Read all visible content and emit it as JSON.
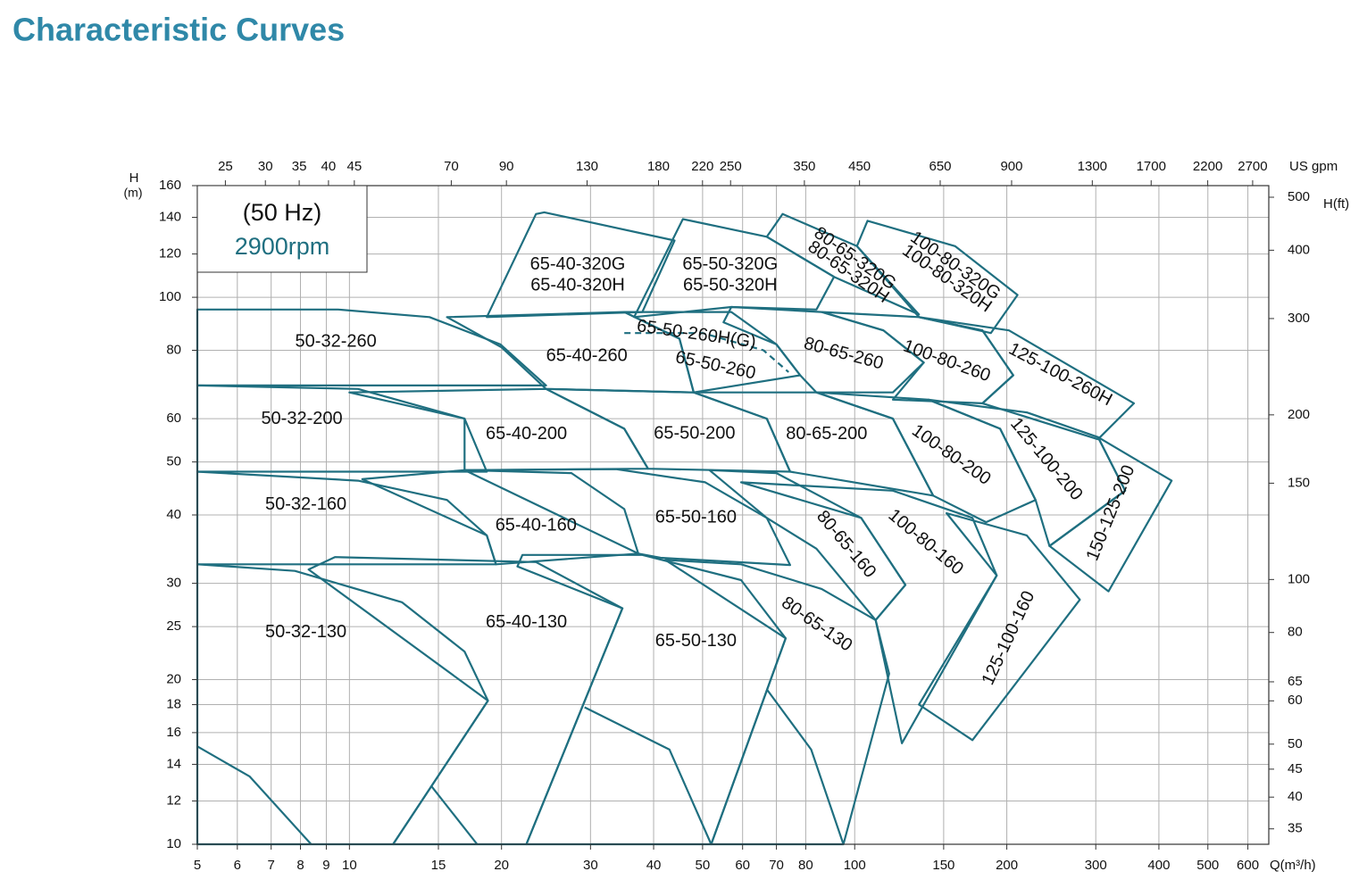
{
  "chart_data": {
    "type": "region",
    "title": "Characteristic Curves",
    "frequency": "(50 Hz)",
    "speed": "2900rpm",
    "y_label": "H",
    "y_unit": "(m)",
    "x_label": "Q(m³/h)",
    "x2_label": "US gpm",
    "y2_label": "H(ft)",
    "log_x": true,
    "log_y": true,
    "grid": true,
    "color": "#1f6f80",
    "title_color": "#2f88a8",
    "xlim": [
      5,
      660
    ],
    "ylim": [
      10,
      160
    ],
    "x2lim": [
      22.0,
      2906
    ],
    "y2lim": [
      32.8,
      525
    ],
    "xticks": [
      5,
      6,
      7,
      8,
      9,
      10,
      15,
      20,
      30,
      40,
      50,
      60,
      70,
      80,
      100,
      150,
      200,
      300,
      400,
      500,
      600
    ],
    "yticks": [
      10,
      12,
      14,
      16,
      18,
      20,
      25,
      30,
      40,
      50,
      60,
      80,
      100,
      120,
      140,
      160
    ],
    "x2ticks": [
      25,
      30,
      35,
      40,
      45,
      70,
      90,
      130,
      180,
      220,
      250,
      350,
      450,
      650,
      900,
      1300,
      1700,
      2200,
      2700
    ],
    "y2ticks": [
      35,
      40,
      45,
      50,
      60,
      65,
      80,
      100,
      150,
      200,
      300,
      400,
      500
    ],
    "regions": [
      {
        "points": [
          [
            5,
            95
          ],
          [
            9.5,
            95
          ],
          [
            14.4,
            92
          ],
          [
            19.9,
            82
          ],
          [
            24.5,
            69
          ],
          [
            5,
            69
          ]
        ]
      },
      {
        "points": [
          [
            15.6,
            92
          ],
          [
            35,
            94
          ],
          [
            45,
            84
          ],
          [
            48,
            67
          ],
          [
            24.5,
            68
          ],
          [
            20,
            81
          ]
        ]
      },
      {
        "points": [
          [
            35,
            94
          ],
          [
            57,
            94
          ],
          [
            70,
            82
          ],
          [
            78,
            72
          ],
          [
            48,
            67
          ],
          [
            45,
            84
          ]
        ]
      },
      {
        "points": [
          [
            35,
            86
          ],
          [
            50,
            86
          ],
          [
            66,
            80
          ],
          [
            74,
            73
          ]
        ],
        "closed": false,
        "dashed": true
      },
      {
        "points": [
          [
            57,
            96
          ],
          [
            86,
            94
          ],
          [
            114,
            87
          ],
          [
            137,
            76
          ],
          [
            119,
            67
          ],
          [
            84,
            67
          ],
          [
            78,
            72
          ],
          [
            70,
            82
          ],
          [
            55,
            90
          ]
        ]
      },
      {
        "points": [
          [
            86,
            94
          ],
          [
            134,
            92
          ],
          [
            179,
            87
          ],
          [
            206,
            72
          ],
          [
            179,
            64
          ],
          [
            119,
            65
          ],
          [
            137,
            76
          ],
          [
            114,
            87
          ]
        ]
      },
      {
        "points": [
          [
            134,
            92
          ],
          [
            202,
            87
          ],
          [
            357,
            64
          ],
          [
            303,
            55
          ],
          [
            179,
            64
          ],
          [
            206,
            72
          ],
          [
            179,
            87
          ]
        ]
      },
      {
        "points": [
          [
            18.7,
            92
          ],
          [
            23.4,
            142
          ],
          [
            24.3,
            143
          ],
          [
            44,
            127
          ],
          [
            38,
            94
          ]
        ]
      },
      {
        "points": [
          [
            36.6,
            92
          ],
          [
            45.7,
            139
          ],
          [
            67,
            129
          ],
          [
            91,
            109
          ],
          [
            84,
            95
          ],
          [
            57,
            96
          ]
        ]
      },
      {
        "points": [
          [
            67,
            129
          ],
          [
            72,
            142
          ],
          [
            101,
            124
          ],
          [
            134,
            93
          ],
          [
            91,
            109
          ]
        ]
      },
      {
        "points": [
          [
            101,
            124
          ],
          [
            106,
            138
          ],
          [
            158,
            124
          ],
          [
            210,
            101
          ],
          [
            186,
            86
          ],
          [
            134,
            92
          ]
        ]
      },
      {
        "points": [
          [
            5,
            69
          ],
          [
            10.4,
            68
          ],
          [
            16.9,
            60
          ],
          [
            18.7,
            48
          ],
          [
            5,
            48
          ]
        ]
      },
      {
        "points": [
          [
            10,
            67
          ],
          [
            24.5,
            68
          ],
          [
            35,
            57.5
          ],
          [
            39,
            48.6
          ],
          [
            16.9,
            48.3
          ],
          [
            16.9,
            60
          ]
        ]
      },
      {
        "points": [
          [
            24.5,
            68
          ],
          [
            48,
            67
          ],
          [
            67,
            60
          ],
          [
            74.5,
            48
          ],
          [
            39,
            48.6
          ],
          [
            35,
            57.5
          ]
        ]
      },
      {
        "points": [
          [
            48,
            67
          ],
          [
            84,
            67
          ],
          [
            119,
            60
          ],
          [
            143,
            43.4
          ],
          [
            74.5,
            48
          ],
          [
            67,
            60
          ]
        ]
      },
      {
        "points": [
          [
            84,
            67
          ],
          [
            140,
            65
          ],
          [
            194,
            57.5
          ],
          [
            228,
            42.6
          ],
          [
            182,
            38.8
          ],
          [
            143,
            43.4
          ],
          [
            119,
            60
          ]
        ]
      },
      {
        "points": [
          [
            140,
            65
          ],
          [
            219,
            61.6
          ],
          [
            303,
            55.5
          ],
          [
            343,
            44.3
          ],
          [
            243,
            35.1
          ],
          [
            228,
            42.6
          ],
          [
            194,
            57.5
          ]
        ]
      },
      {
        "points": [
          [
            303,
            55.5
          ],
          [
            424,
            46.2
          ],
          [
            318,
            29
          ],
          [
            243,
            35.1
          ],
          [
            343,
            44.3
          ]
        ]
      },
      {
        "points": [
          [
            5,
            48
          ],
          [
            10.4,
            46.2
          ],
          [
            15.6,
            42.6
          ],
          [
            18.7,
            36.7
          ],
          [
            19.5,
            32.5
          ],
          [
            5,
            32.5
          ]
        ]
      },
      {
        "points": [
          [
            10.6,
            46.5
          ],
          [
            16.9,
            48.3
          ],
          [
            27.5,
            47.7
          ],
          [
            35,
            41
          ],
          [
            37.3,
            34
          ],
          [
            19.5,
            32.5
          ],
          [
            18.7,
            36.7
          ]
        ]
      },
      {
        "points": [
          [
            16.9,
            48.3
          ],
          [
            33.7,
            48.5
          ],
          [
            50.6,
            45.9
          ],
          [
            67,
            39.5
          ],
          [
            74.5,
            32.4
          ],
          [
            41.3,
            33.4
          ],
          [
            37.3,
            34
          ]
        ]
      },
      {
        "points": [
          [
            51.6,
            48.3
          ],
          [
            70,
            47.7
          ],
          [
            103,
            39.5
          ],
          [
            126,
            29.8
          ],
          [
            110,
            25.7
          ],
          [
            84,
            34.7
          ],
          [
            67,
            39.5
          ]
        ]
      },
      {
        "points": [
          [
            59.6,
            45.9
          ],
          [
            119,
            44.3
          ],
          [
            171,
            39.5
          ],
          [
            191,
            31
          ],
          [
            124,
            15.3
          ],
          [
            110,
            25.7
          ],
          [
            126,
            29.8
          ],
          [
            103,
            39.5
          ]
        ]
      },
      {
        "points": [
          [
            152,
            40.3
          ],
          [
            219,
            36.7
          ],
          [
            279,
            28
          ],
          [
            171,
            15.5
          ],
          [
            134,
            18
          ],
          [
            191,
            31
          ]
        ]
      },
      {
        "points": [
          [
            5,
            32.5
          ],
          [
            7.8,
            31.6
          ],
          [
            12.7,
            27.7
          ],
          [
            16.9,
            22.5
          ],
          [
            18.8,
            18.3
          ],
          [
            12.2,
            10
          ],
          [
            5,
            10
          ]
        ]
      },
      {
        "points": [
          [
            5,
            15.1
          ],
          [
            6.35,
            13.3
          ],
          [
            8.4,
            10
          ]
        ],
        "closed": false
      },
      {
        "points": [
          [
            8.3,
            31.8
          ],
          [
            9.36,
            33.5
          ],
          [
            23.4,
            32.8
          ],
          [
            34.7,
            27
          ],
          [
            22.4,
            10
          ],
          [
            12.2,
            10
          ],
          [
            18.8,
            18.3
          ]
        ]
      },
      {
        "points": [
          [
            14.5,
            12.8
          ],
          [
            17.9,
            10
          ]
        ],
        "closed": false
      },
      {
        "points": [
          [
            21.5,
            32.2
          ],
          [
            22,
            33.8
          ],
          [
            38,
            33.8
          ],
          [
            59.6,
            30.4
          ],
          [
            73,
            23.8
          ],
          [
            52,
            10
          ],
          [
            22.4,
            10
          ],
          [
            34.7,
            27
          ]
        ]
      },
      {
        "points": [
          [
            29.2,
            17.8
          ],
          [
            43,
            14.9
          ],
          [
            52,
            10
          ]
        ],
        "closed": false
      },
      {
        "points": [
          [
            42.2,
            33.1
          ],
          [
            59.6,
            32.5
          ],
          [
            86,
            29.3
          ],
          [
            110,
            25.7
          ],
          [
            117,
            20.5
          ],
          [
            95,
            10
          ],
          [
            52,
            10
          ],
          [
            73,
            23.8
          ]
        ]
      },
      {
        "points": [
          [
            67,
            19.2
          ],
          [
            82,
            14.9
          ],
          [
            95,
            10
          ]
        ],
        "closed": false
      }
    ],
    "labels": [
      {
        "text": "50-32-260",
        "x": 9.4,
        "y": 82.8
      },
      {
        "text": "65-40-260",
        "x": 29.5,
        "y": 78
      },
      {
        "text": "65-50-260H(G)",
        "x": 48.6,
        "y": 85.4
      },
      {
        "text": "65-50-260",
        "x": 53,
        "y": 74.9
      },
      {
        "text": "80-65-260",
        "x": 95,
        "y": 78.7
      },
      {
        "text": "100-80-260",
        "x": 152,
        "y": 76.3
      },
      {
        "text": "125-100-260H",
        "x": 255,
        "y": 72.1
      },
      {
        "text": "65-40-320G",
        "x": 28.3,
        "y": 114.6
      },
      {
        "text": "65-40-320H",
        "x": 28.3,
        "y": 105
      },
      {
        "text": "65-50-320G",
        "x": 56.7,
        "y": 114.6
      },
      {
        "text": "65-50-320H",
        "x": 56.7,
        "y": 105
      },
      {
        "text": "80-65-320G",
        "x": 100,
        "y": 117.5
      },
      {
        "text": "80-65-320H",
        "x": 97,
        "y": 111
      },
      {
        "text": "100-80-320G",
        "x": 158,
        "y": 114
      },
      {
        "text": "100-80-320H",
        "x": 152,
        "y": 108
      },
      {
        "text": "50-32-200",
        "x": 8.05,
        "y": 59.8
      },
      {
        "text": "65-40-200",
        "x": 22.4,
        "y": 56.1
      },
      {
        "text": "65-50-200",
        "x": 48.2,
        "y": 56.3
      },
      {
        "text": "80-65-200",
        "x": 88,
        "y": 56.1
      },
      {
        "text": "100-80-200",
        "x": 155,
        "y": 51.4
      },
      {
        "text": "125-100-200",
        "x": 239,
        "y": 50.5
      },
      {
        "text": "150-125-200",
        "x": 322,
        "y": 40.3
      },
      {
        "text": "50-32-160",
        "x": 8.2,
        "y": 41.7
      },
      {
        "text": "65-40-160",
        "x": 23.4,
        "y": 38.2
      },
      {
        "text": "65-50-160",
        "x": 48.5,
        "y": 39.5
      },
      {
        "text": "80-65-160",
        "x": 96,
        "y": 35.3
      },
      {
        "text": "100-80-160",
        "x": 138,
        "y": 35.6
      },
      {
        "text": "125-100-160",
        "x": 202,
        "y": 23.8
      },
      {
        "text": "50-32-130",
        "x": 8.2,
        "y": 24.4
      },
      {
        "text": "65-40-130",
        "x": 22.4,
        "y": 25.4
      },
      {
        "text": "65-50-130",
        "x": 48.5,
        "y": 23.5
      },
      {
        "text": "80-65-130",
        "x": 84,
        "y": 25.2
      }
    ]
  }
}
